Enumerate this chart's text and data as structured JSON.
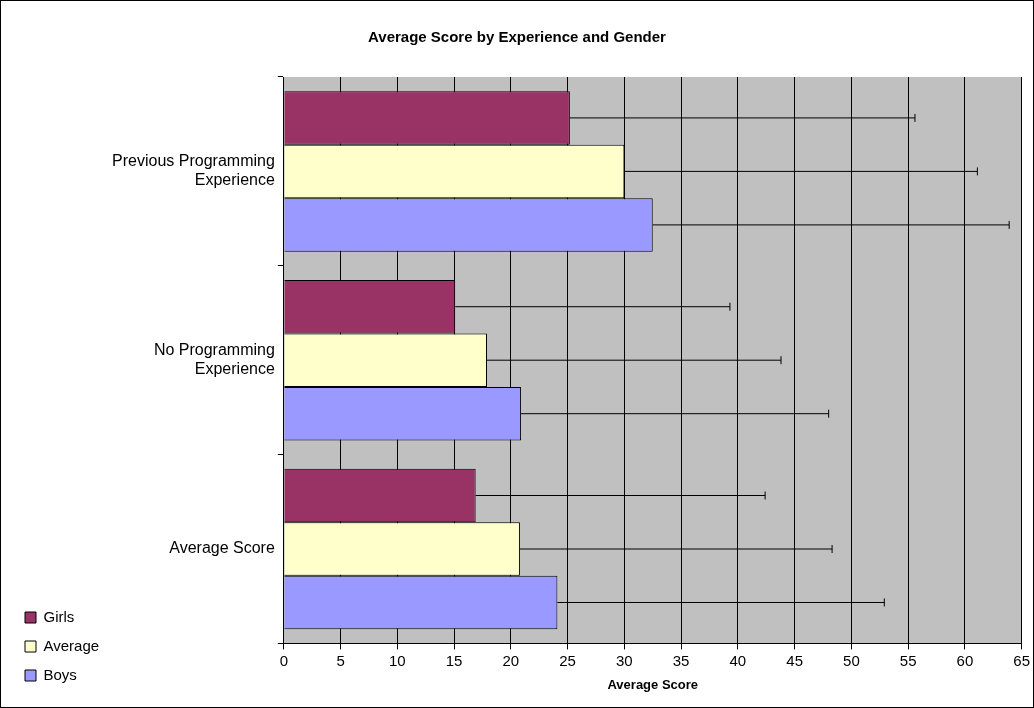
{
  "chart_data": {
    "type": "bar",
    "orientation": "horizontal",
    "title": "Average Score by Experience and Gender",
    "xlabel": "Average Score",
    "categories": [
      "Previous Programming Experience",
      "No Programming Experience",
      "Average Score"
    ],
    "series": [
      {
        "name": "Girls",
        "color": "#993366",
        "values": [
          25.2,
          15.1,
          16.9
        ],
        "errors": [
          [
            25.2,
            55.6
          ],
          [
            15.1,
            39.3
          ],
          [
            16.9,
            42.4
          ]
        ]
      },
      {
        "name": "Average",
        "color": "#ffffcc",
        "values": [
          30.0,
          17.9,
          20.8
        ],
        "errors": [
          [
            30.0,
            61.1
          ],
          [
            17.9,
            43.8
          ],
          [
            20.8,
            48.3
          ]
        ]
      },
      {
        "name": "Boys",
        "color": "#9999ff",
        "values": [
          32.5,
          20.9,
          24.1
        ],
        "errors": [
          [
            32.5,
            63.9
          ],
          [
            20.9,
            48.0
          ],
          [
            24.1,
            52.9
          ]
        ]
      }
    ],
    "xlim": [
      0,
      65
    ],
    "xticks": [
      0,
      5,
      10,
      15,
      20,
      25,
      30,
      35,
      40,
      45,
      50,
      55,
      60,
      65
    ],
    "grid": "x",
    "legend": "bottom left"
  }
}
